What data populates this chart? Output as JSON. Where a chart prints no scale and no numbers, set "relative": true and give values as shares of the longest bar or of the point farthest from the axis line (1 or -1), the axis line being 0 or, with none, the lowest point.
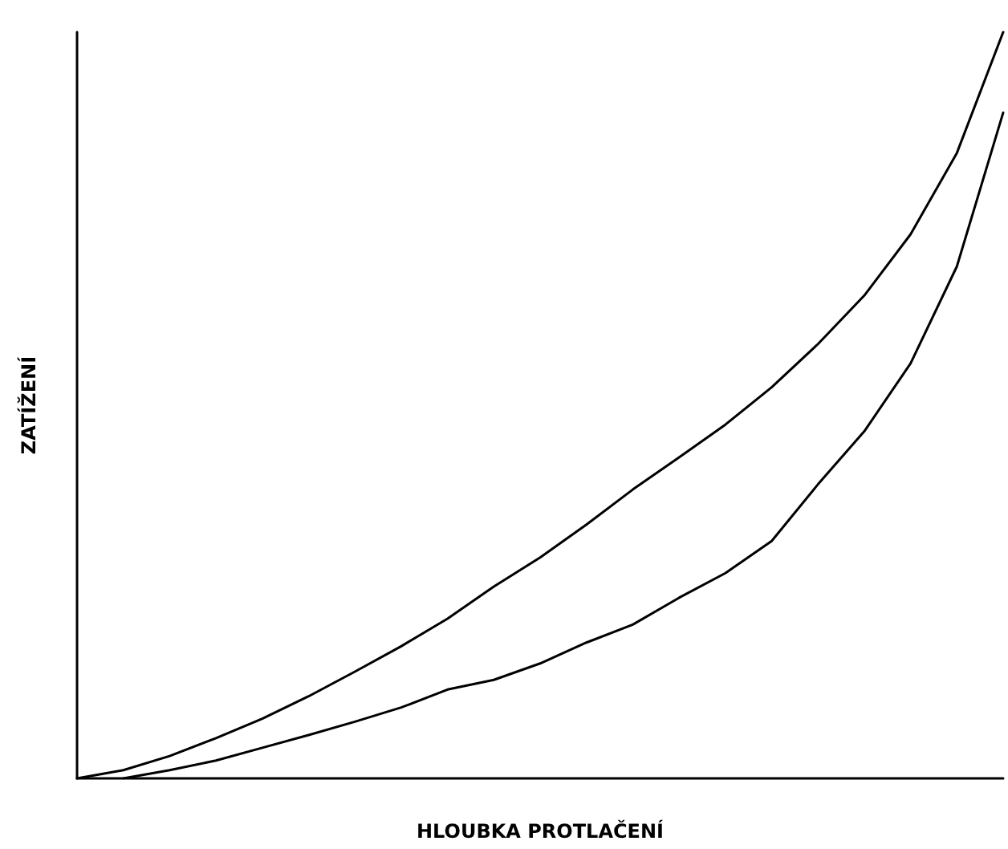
{
  "chart_data": {
    "type": "line",
    "relative": true,
    "xlabel": "HLOUBKA PROTLAČENÍ",
    "ylabel": "ZATÍŽENÍ",
    "categories": [
      null,
      null,
      null,
      null,
      null,
      null,
      null,
      null,
      null,
      null,
      null,
      null,
      null,
      null,
      null,
      null,
      null,
      null,
      null,
      null,
      null
    ],
    "series": [
      {
        "color": "#000000",
        "values": [
          0,
          0.011,
          0.03,
          0.054,
          0.08,
          0.11,
          0.143,
          0.177,
          0.214,
          0.257,
          0.296,
          0.34,
          0.387,
          0.43,
          0.474,
          0.524,
          0.582,
          0.647,
          0.729,
          0.838,
          1
        ]
      },
      {
        "color": "#000000",
        "values": [
          null,
          0,
          0.011,
          0.024,
          0.041,
          0.058,
          0.076,
          0.095,
          0.119,
          0.132,
          0.154,
          0.182,
          0.206,
          0.242,
          0.275,
          0.318,
          0.394,
          0.465,
          0.556,
          0.686,
          0.892
        ]
      }
    ],
    "grid": false,
    "marker": "none",
    "line_style": "solid"
  }
}
